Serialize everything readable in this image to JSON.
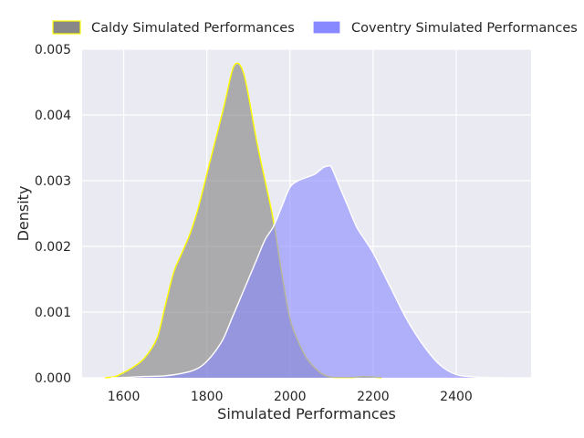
{
  "chart_data": {
    "type": "area",
    "title": "",
    "xlabel": "Simulated Performances",
    "ylabel": "Density",
    "xlim": [
      1500,
      2580
    ],
    "ylim": [
      0,
      0.005
    ],
    "xticks": [
      "1600",
      "1800",
      "2000",
      "2200",
      "2400"
    ],
    "yticks": [
      "0.000",
      "0.001",
      "0.002",
      "0.003",
      "0.004",
      "0.005"
    ],
    "grid": true,
    "legend": "top, horizontal, outside plot",
    "series": [
      {
        "name": "Caldy Simulated Performances",
        "fill": "#808080",
        "fill_opacity": 0.6,
        "legend_fill": "#888888",
        "stroke": "#ffff00",
        "x": [
          1555,
          1580,
          1600,
          1620,
          1650,
          1680,
          1700,
          1720,
          1740,
          1760,
          1780,
          1800,
          1820,
          1840,
          1860,
          1870,
          1880,
          1890,
          1900,
          1920,
          1940,
          1960,
          1980,
          2000,
          2020,
          2040,
          2060,
          2080,
          2100,
          2120,
          2150,
          2180,
          2220
        ],
        "y": [
          0,
          2e-05,
          8e-05,
          0.00015,
          0.0003,
          0.0006,
          0.0011,
          0.0016,
          0.0019,
          0.0022,
          0.0026,
          0.0031,
          0.0036,
          0.0041,
          0.00465,
          0.00478,
          0.00476,
          0.0046,
          0.0043,
          0.0036,
          0.003,
          0.0024,
          0.0016,
          0.0009,
          0.00055,
          0.0003,
          0.00015,
          5e-05,
          1e-05,
          5e-06,
          5e-06,
          2e-05,
          0
        ]
      },
      {
        "name": "Coventry Simulated Performances",
        "fill": "#8888ff",
        "fill_opacity": 0.6,
        "legend_fill": "#8888ff",
        "stroke": "#ffffff",
        "x": [
          1570,
          1600,
          1650,
          1700,
          1750,
          1780,
          1800,
          1820,
          1840,
          1860,
          1880,
          1900,
          1920,
          1940,
          1960,
          1980,
          2000,
          2020,
          2040,
          2060,
          2080,
          2090,
          2100,
          2120,
          2140,
          2160,
          2180,
          2200,
          2240,
          2280,
          2320,
          2360,
          2400,
          2450,
          2510
        ],
        "y": [
          0,
          5e-06,
          2e-05,
          3e-05,
          8e-05,
          0.00015,
          0.00025,
          0.0004,
          0.0006,
          0.0009,
          0.0012,
          0.0015,
          0.0018,
          0.0021,
          0.0023,
          0.0026,
          0.0029,
          0.003,
          0.00305,
          0.0031,
          0.0032,
          0.00322,
          0.0032,
          0.0029,
          0.0026,
          0.0023,
          0.0021,
          0.0019,
          0.0014,
          0.0009,
          0.0005,
          0.0002,
          5e-05,
          1e-05,
          0
        ]
      }
    ]
  }
}
